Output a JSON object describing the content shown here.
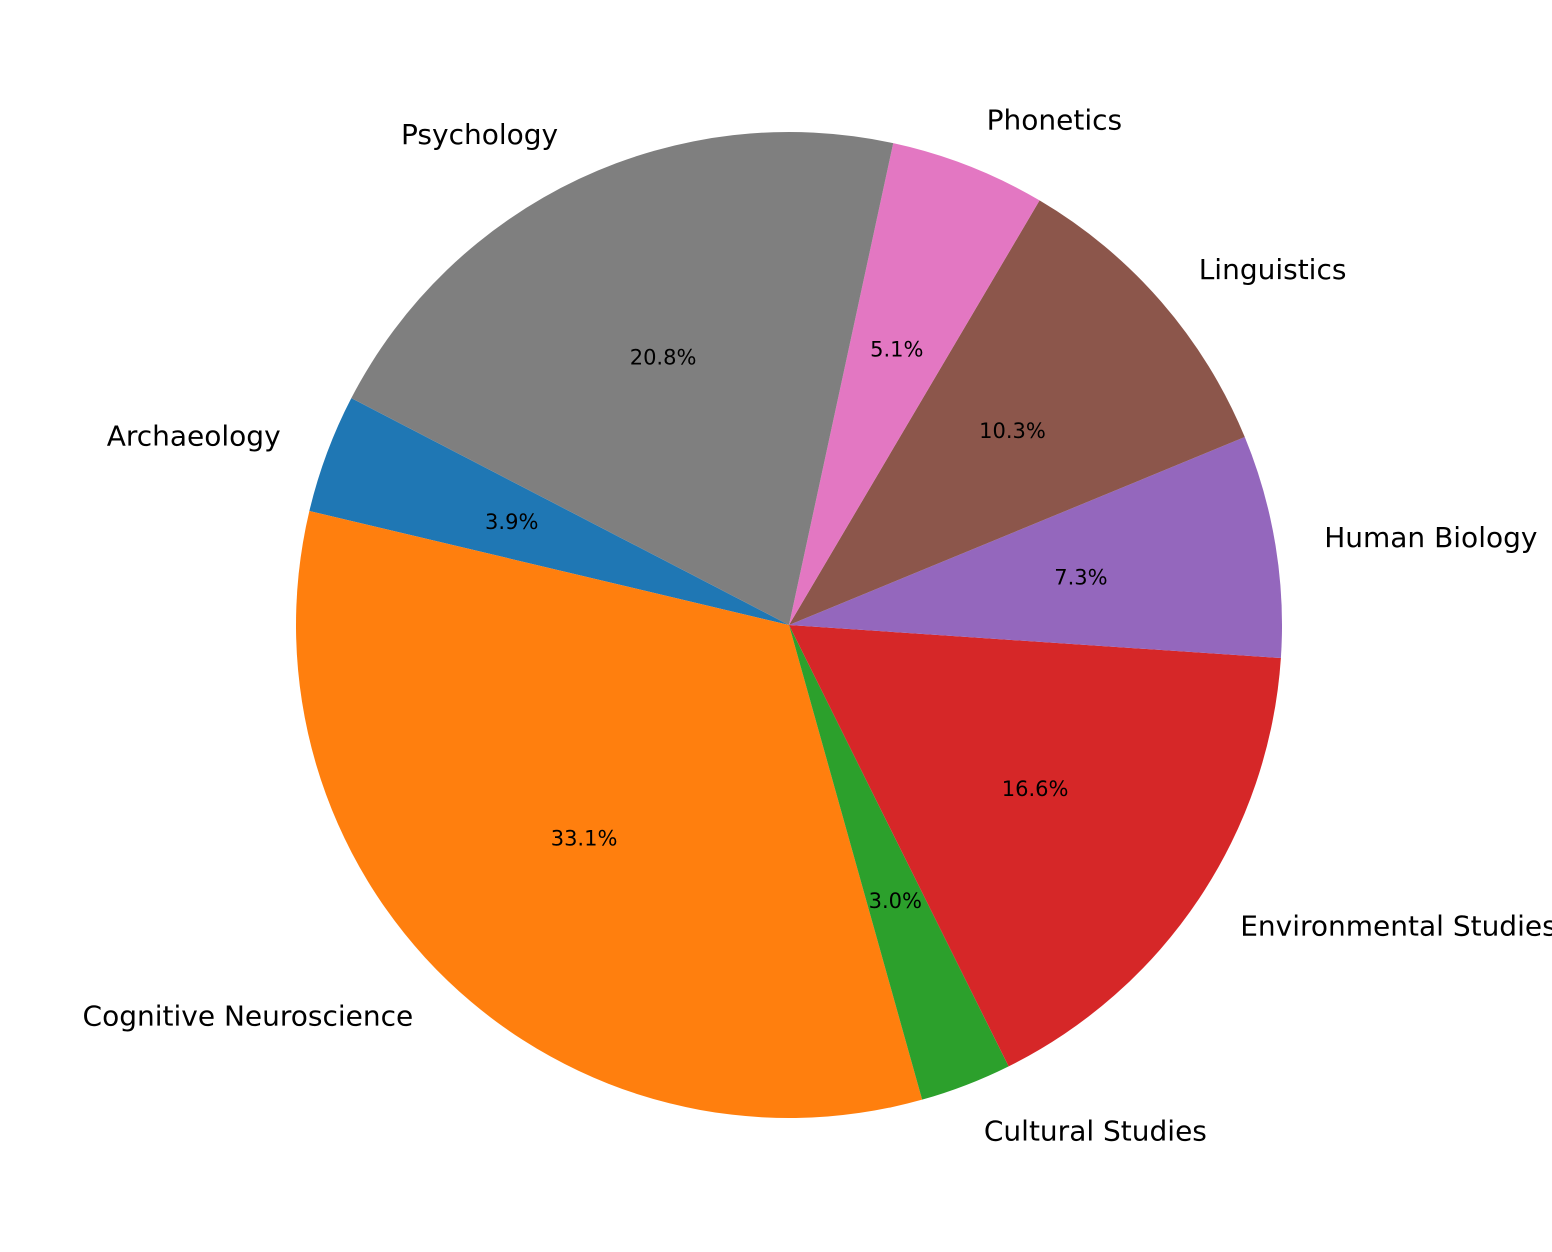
{
  "chart_data": {
    "type": "pie",
    "categories": [
      "Archaeology",
      "Cognitive Neuroscience",
      "Cultural Studies",
      "Environmental Studies",
      "Human Biology",
      "Linguistics",
      "Phonetics",
      "Psychology"
    ],
    "values": [
      3.9,
      33.1,
      3.0,
      16.6,
      7.3,
      10.3,
      5.1,
      20.8
    ],
    "percent_labels": [
      "3.9%",
      "33.1%",
      "3.0%",
      "16.6%",
      "7.3%",
      "10.3%",
      "5.1%",
      "20.8%"
    ],
    "colors": [
      "#1f77b4",
      "#ff7f0e",
      "#2ca02c",
      "#d62728",
      "#9467bd",
      "#8c564b",
      "#e377c2",
      "#7f7f7f"
    ],
    "start_angle_deg": 152.6,
    "direction": "counterclockwise",
    "legend": "none"
  }
}
